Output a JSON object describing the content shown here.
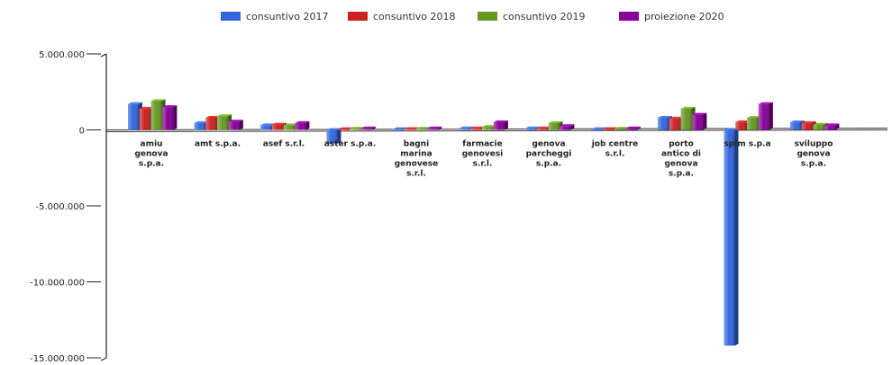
{
  "chart_data": {
    "type": "bar",
    "title": "",
    "xlabel": "",
    "ylabel": "",
    "ylim": [
      -15000000,
      5000000
    ],
    "yticks": [
      5000000,
      0,
      -5000000,
      -10000000,
      -15000000
    ],
    "ytick_labels": [
      "5.000.000",
      "0",
      "-5.000.000",
      "-10.000.000",
      "-15.000.000"
    ],
    "legend_position": "top-center",
    "grid": false,
    "categories": [
      [
        "amiu",
        "genova",
        "s.p.a."
      ],
      [
        "amt s.p.a."
      ],
      [
        "asef s.r.l."
      ],
      [
        "aster s.p.a."
      ],
      [
        "bagni",
        "marina",
        "genovese",
        "s.r.l."
      ],
      [
        "farmacie",
        "genovesi",
        "s.r.l."
      ],
      [
        "genova",
        "parcheggi",
        "s.p.a."
      ],
      [
        "job centre",
        "s.r.l."
      ],
      [
        "porto",
        "antico di",
        "genova",
        "s.p.a."
      ],
      [
        "spim s.p.a"
      ],
      [
        "sviluppo",
        "genova",
        "s.p.a."
      ]
    ],
    "series": [
      {
        "name": "consuntivo 2017",
        "color": "#3366dd",
        "values": [
          1700000,
          450000,
          300000,
          -900000,
          50000,
          100000,
          100000,
          50000,
          800000,
          -14200000,
          500000
        ]
      },
      {
        "name": "consuntivo 2018",
        "color": "#cc2222",
        "values": [
          1400000,
          800000,
          350000,
          50000,
          60000,
          100000,
          100000,
          60000,
          750000,
          500000,
          450000
        ]
      },
      {
        "name": "consuntivo 2019",
        "color": "#669922",
        "values": [
          1900000,
          900000,
          300000,
          80000,
          80000,
          200000,
          450000,
          80000,
          1400000,
          800000,
          350000
        ]
      },
      {
        "name": "proiezione 2020",
        "color": "#880099",
        "values": [
          1500000,
          550000,
          450000,
          100000,
          100000,
          500000,
          250000,
          100000,
          1000000,
          1700000,
          300000
        ]
      }
    ]
  }
}
